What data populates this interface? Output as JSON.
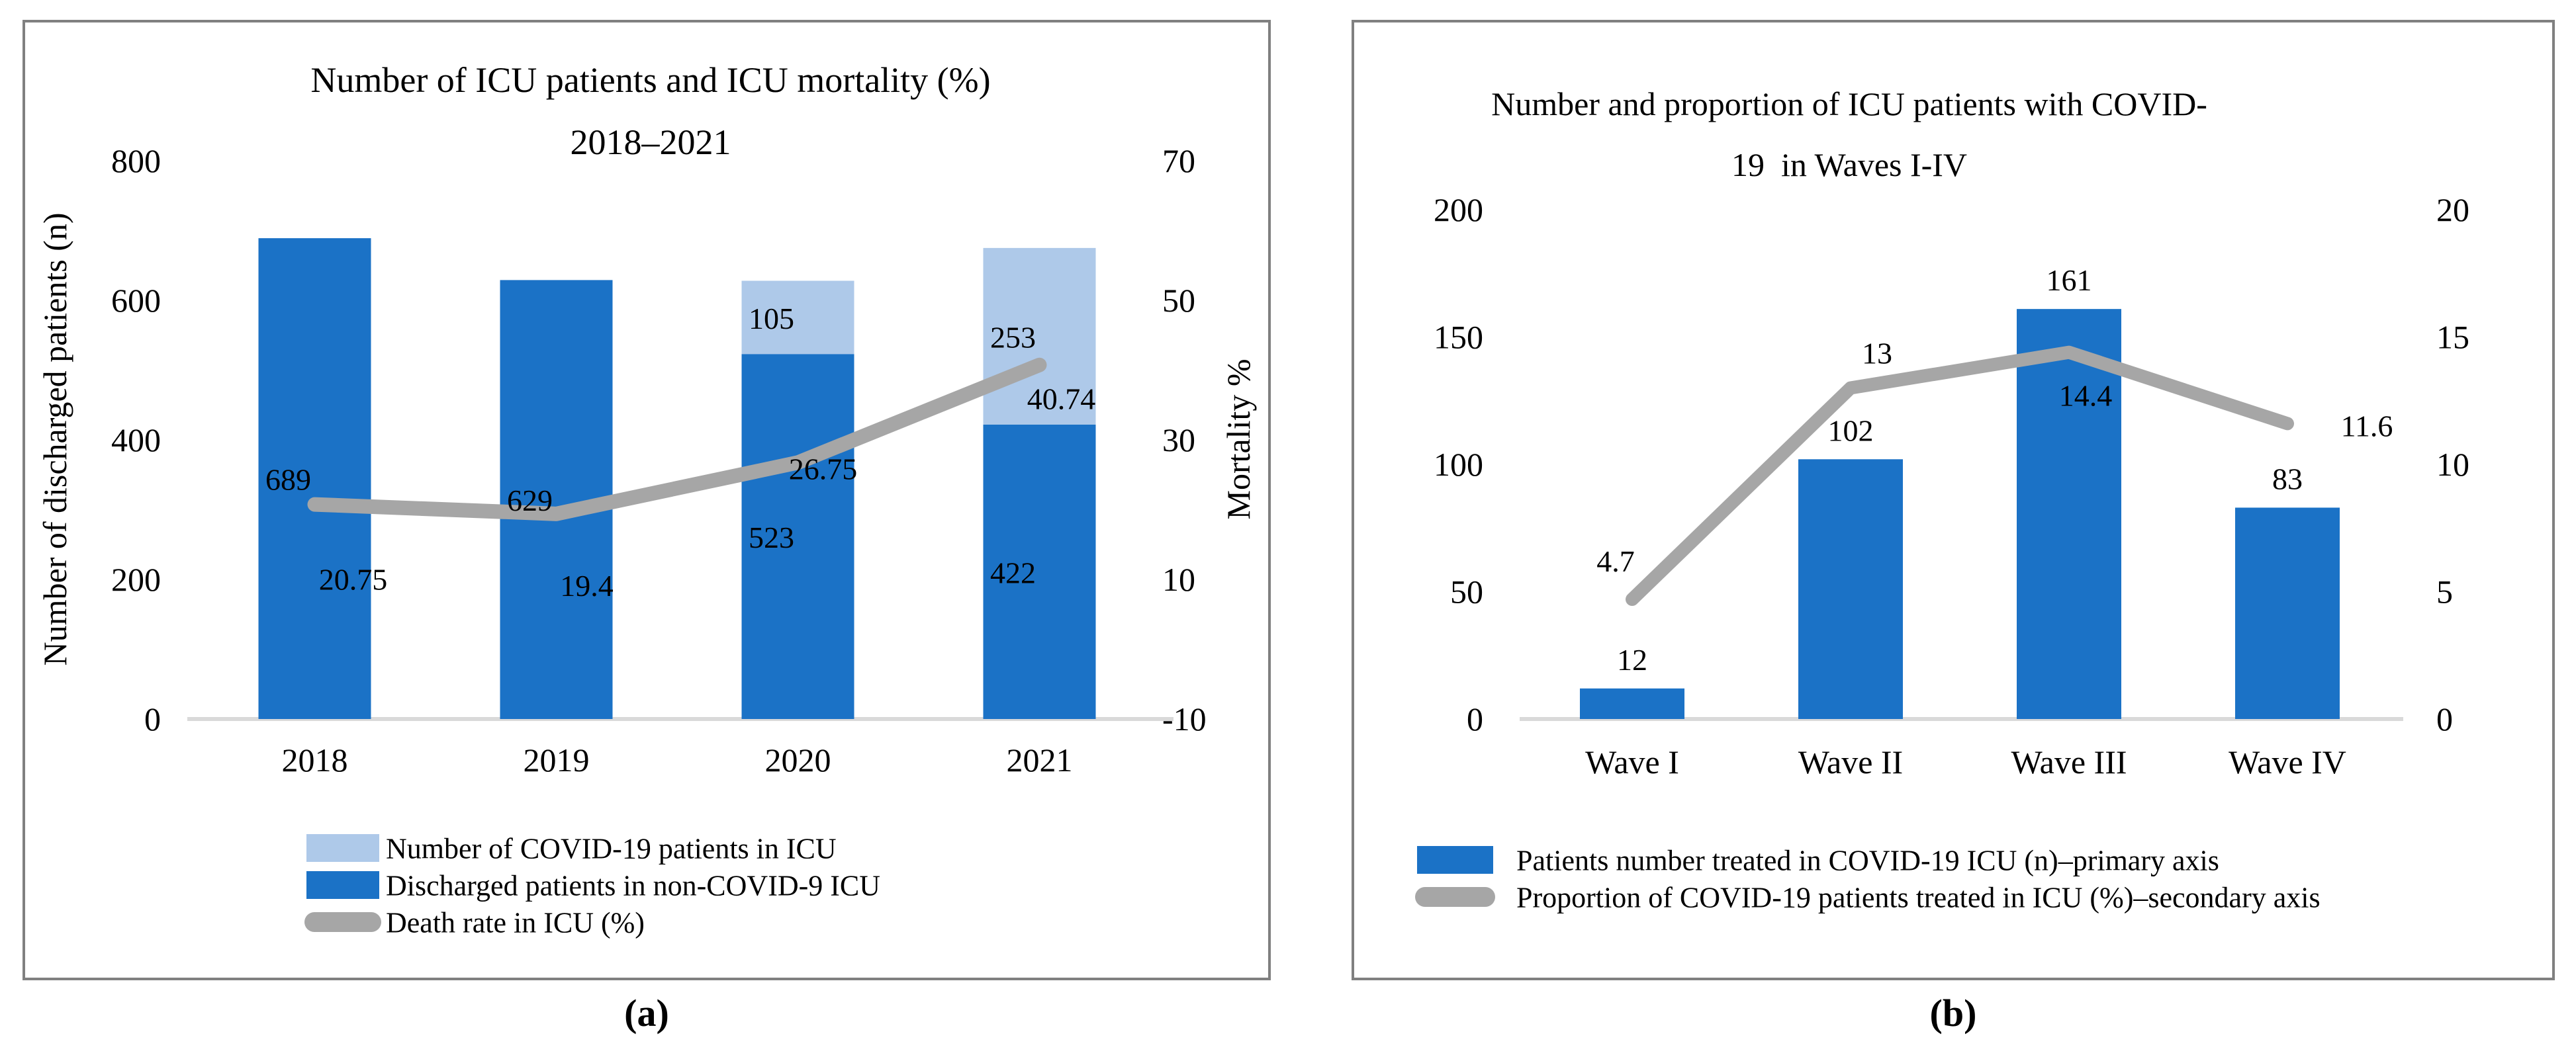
{
  "figure": {
    "caption_a": "(a)",
    "caption_b": "(b)"
  },
  "colors": {
    "bar_primary": "#1B72C6",
    "bar_secondary": "#AEC9E9",
    "line_gray": "#A6A6A6",
    "axis_line": "#D9D9D9",
    "panel_border": "#808080",
    "text": "#000000"
  },
  "chart_data": [
    {
      "id": "a",
      "type": "bar",
      "title_lines": [
        "Number of ICU patients and ICU mortality (%)",
        "2018–2021"
      ],
      "categories": [
        "2018",
        "2019",
        "2020",
        "2021"
      ],
      "y_left": {
        "title": "Number of discharged patients (n)",
        "min": 0,
        "max": 800,
        "ticks": [
          0,
          200,
          400,
          600,
          800
        ]
      },
      "y_right": {
        "title": "Mortality %",
        "min": -10,
        "max": 70,
        "ticks": [
          -10,
          10,
          30,
          50,
          70
        ]
      },
      "grid": false,
      "series": [
        {
          "name": "Discharged patients in non-COVID-9 ICU",
          "type": "bar",
          "axis": "left",
          "color": "bar_primary",
          "values": [
            689,
            629,
            523,
            422
          ],
          "labels": [
            "689",
            "629",
            "523",
            "422"
          ]
        },
        {
          "name": "Number of COVID-19 patients in ICU",
          "type": "bar",
          "axis": "left",
          "color": "bar_secondary",
          "values": [
            0,
            0,
            105,
            253
          ],
          "labels": [
            "",
            "",
            "105",
            "253"
          ]
        },
        {
          "name": "Death rate in ICU (%)",
          "type": "line",
          "axis": "right",
          "color": "line_gray",
          "values": [
            20.75,
            19.4,
            26.75,
            40.74
          ],
          "labels": [
            "20.75",
            "19.4",
            "26.75",
            "40.74"
          ],
          "label_offsets": [
            [
              58,
              129
            ],
            [
              46,
              124
            ],
            [
              38,
              25
            ],
            [
              33,
              67
            ]
          ]
        }
      ],
      "legend": [
        {
          "swatch": "patch",
          "color": "bar_secondary",
          "label": "Number of COVID-19 patients in ICU"
        },
        {
          "swatch": "patch",
          "color": "bar_primary",
          "label": "Discharged patients in non-COVID-9 ICU"
        },
        {
          "swatch": "line",
          "color": "line_gray",
          "label": "Death rate in ICU (%)"
        }
      ]
    },
    {
      "id": "b",
      "type": "bar",
      "title_lines": [
        "Number and proportion of ICU patients with COVID-",
        "19  in Waves I-IV"
      ],
      "categories": [
        "Wave I",
        "Wave II",
        "Wave III",
        "Wave IV"
      ],
      "y_left": {
        "title": "",
        "min": 0,
        "max": 200,
        "ticks": [
          0,
          50,
          100,
          150,
          200
        ]
      },
      "y_right": {
        "title": "",
        "min": 0,
        "max": 20,
        "ticks": [
          0,
          5,
          10,
          15,
          20
        ]
      },
      "grid": false,
      "series": [
        {
          "name": "Patients number treated in COVID-19 ICU (n)–primary axis",
          "type": "bar",
          "axis": "left",
          "color": "bar_primary",
          "values": [
            12,
            102,
            161,
            83
          ],
          "labels": [
            "12",
            "102",
            "161",
            "83"
          ]
        },
        {
          "name": "Proportion of COVID-19 patients treated in ICU (%)–secondary axis",
          "type": "line",
          "axis": "right",
          "color": "line_gray",
          "values": [
            4.7,
            13,
            14.4,
            11.6
          ],
          "labels": [
            "4.7",
            "13",
            "14.4",
            "11.6"
          ],
          "label_offsets": [
            [
              -25,
              -42
            ],
            [
              40,
              -37
            ],
            [
              25,
              81
            ],
            [
              120,
              19
            ]
          ]
        }
      ],
      "legend": [
        {
          "swatch": "patch",
          "color": "bar_primary",
          "label": "Patients number treated in COVID-19 ICU (n)–primary axis"
        },
        {
          "swatch": "line",
          "color": "line_gray",
          "label": "Proportion of COVID-19 patients treated in ICU (%)–secondary axis"
        }
      ]
    }
  ]
}
